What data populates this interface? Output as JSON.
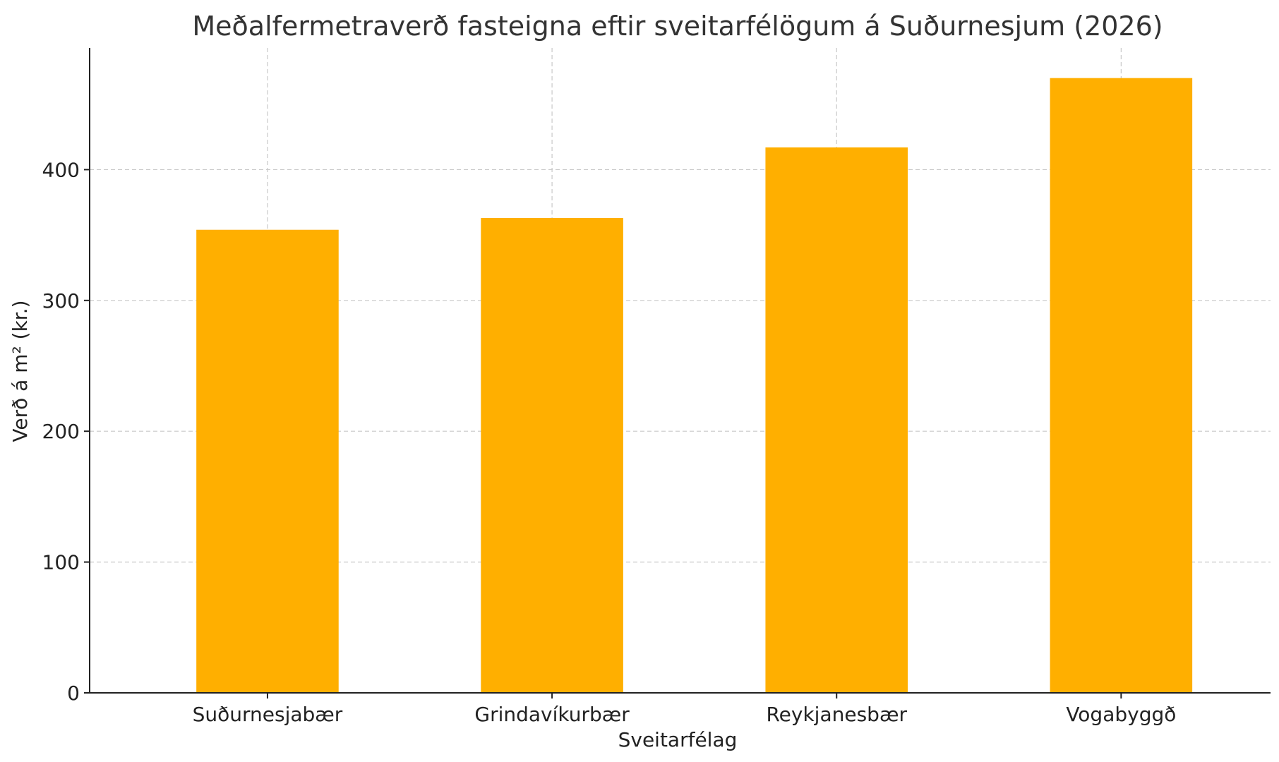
{
  "chart_data": {
    "type": "bar",
    "title": "Meðalfermetraverð fasteigna eftir sveitarfélögum á Suðurnesjum (2026)",
    "xlabel": "Sveitarfélag",
    "ylabel": "Verð á m² (kr.)",
    "categories": [
      "Suðurnesjabær",
      "Grindavíkurbær",
      "Reykjanesbær",
      "Vogabyggð"
    ],
    "values": [
      354,
      363,
      417,
      470
    ],
    "ylim": [
      0,
      493
    ],
    "yticks": [
      0,
      100,
      200,
      300,
      400
    ],
    "grid": true,
    "bar_color": "#FFAF00"
  }
}
